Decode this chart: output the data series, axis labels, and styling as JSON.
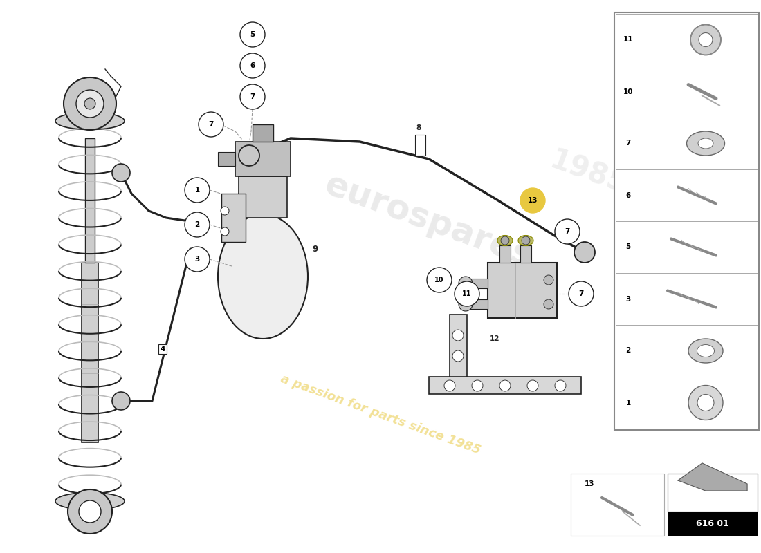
{
  "bg_color": "#ffffff",
  "diagram_code": "616 01",
  "watermark_text": "a passion for parts since 1985",
  "watermark_logo": "eurospares",
  "accent_color": "#e8c840",
  "line_color": "#222222",
  "gray_fill": "#d8d8d8",
  "light_gray": "#eeeeee",
  "panel_border": "#aaaaaa",
  "right_panel_items": [
    {
      "num": "11",
      "type": "nut"
    },
    {
      "num": "10",
      "type": "bolt_short"
    },
    {
      "num": "7",
      "type": "washer_hex"
    },
    {
      "num": "6",
      "type": "bolt_medium"
    },
    {
      "num": "5",
      "type": "bolt_thread"
    },
    {
      "num": "3",
      "type": "bolt_long"
    },
    {
      "num": "2",
      "type": "washer_flat"
    },
    {
      "num": "1",
      "type": "washer_large"
    }
  ]
}
